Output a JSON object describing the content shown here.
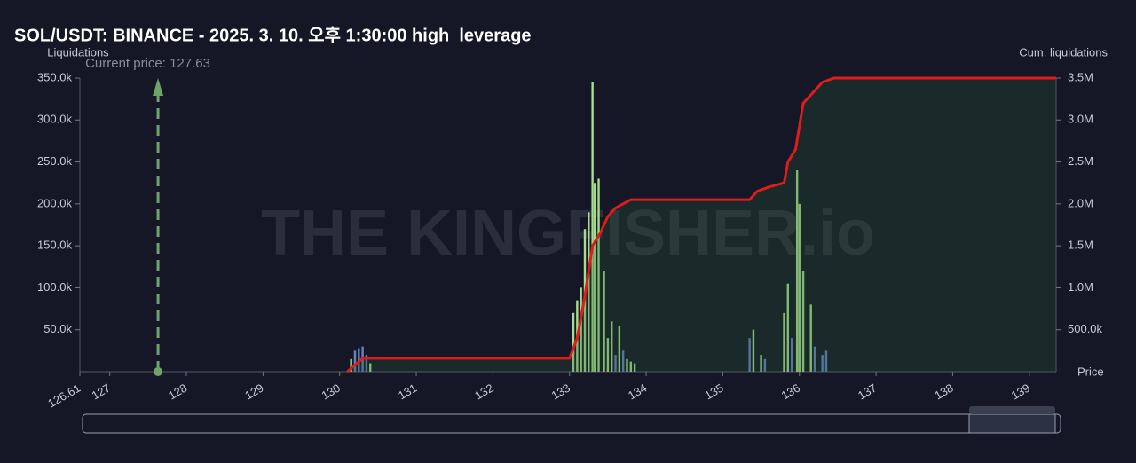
{
  "chart_data": {
    "type": "bar",
    "title": "SOL/USDT: BINANCE - 2025. 3. 10. 오후 1:30:00 high_leverage",
    "y_label": "Liquidations",
    "y2_label": "Cum. liquidations",
    "x_label": "Price",
    "watermark": "THE KINGFISHER.io",
    "annotation": "Current price: 127.63",
    "current_price": 127.63,
    "xlim": [
      126.61,
      139.35
    ],
    "xticks": [
      126.61,
      127,
      128,
      129,
      130,
      131,
      132,
      133,
      134,
      135,
      136,
      137,
      138,
      139
    ],
    "ylim": [
      0,
      350000
    ],
    "yticks": [
      {
        "value": 50000,
        "label": "50.0k"
      },
      {
        "value": 100000,
        "label": "100.0k"
      },
      {
        "value": 150000,
        "label": "150.0k"
      },
      {
        "value": 200000,
        "label": "200.0k"
      },
      {
        "value": 250000,
        "label": "250.0k"
      },
      {
        "value": 300000,
        "label": "300.0k"
      },
      {
        "value": 350000,
        "label": "350.0k"
      }
    ],
    "y2lim": [
      0,
      3500000
    ],
    "y2ticks": [
      {
        "value": 500000,
        "label": "500.0k"
      },
      {
        "value": 1000000,
        "label": "1.0M"
      },
      {
        "value": 1500000,
        "label": "1.5M"
      },
      {
        "value": 2000000,
        "label": "2.0M"
      },
      {
        "value": 2500000,
        "label": "2.5M"
      },
      {
        "value": 3000000,
        "label": "3.0M"
      },
      {
        "value": 3500000,
        "label": "3.5M"
      }
    ],
    "series": [
      {
        "color": "#a6dd8c",
        "x": [
          130.15,
          130.4,
          133.05,
          133.1,
          133.15,
          133.2,
          133.25,
          133.3,
          133.33,
          133.38,
          133.45,
          133.5,
          133.55,
          133.65,
          133.75,
          133.8,
          133.85,
          135.4,
          135.5,
          135.8,
          135.85,
          135.97,
          136.0,
          136.05,
          136.15
        ],
        "values": [
          15000,
          10000,
          70000,
          85000,
          100000,
          170000,
          190000,
          345000,
          225000,
          230000,
          120000,
          40000,
          60000,
          55000,
          15000,
          12000,
          10000,
          50000,
          20000,
          70000,
          105000,
          240000,
          200000,
          120000,
          80000
        ]
      },
      {
        "color": "#6483c4",
        "x": [
          130.2,
          130.25,
          130.3,
          130.35,
          133.6,
          133.7,
          135.35,
          135.55,
          135.9,
          136.2,
          136.3,
          136.35
        ],
        "values": [
          25000,
          28000,
          30000,
          20000,
          20000,
          25000,
          40000,
          15000,
          40000,
          30000,
          20000,
          25000
        ]
      },
      {
        "color": "#e01b1b",
        "axis": "y2",
        "x": [
          130.1,
          130.3,
          133.0,
          133.1,
          133.2,
          133.3,
          133.4,
          133.5,
          133.6,
          133.7,
          133.8,
          135.35,
          135.45,
          135.6,
          135.8,
          135.85,
          135.95,
          136.05,
          136.2,
          136.3,
          136.45,
          139.35
        ],
        "values": [
          0,
          160000,
          160000,
          400000,
          900000,
          1500000,
          1650000,
          1850000,
          1950000,
          2000000,
          2050000,
          2050000,
          2150000,
          2200000,
          2250000,
          2500000,
          2650000,
          3200000,
          3350000,
          3450000,
          3500000,
          3500000
        ]
      }
    ]
  }
}
